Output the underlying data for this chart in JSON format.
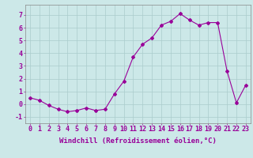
{
  "x": [
    0,
    1,
    2,
    3,
    4,
    5,
    6,
    7,
    8,
    9,
    10,
    11,
    12,
    13,
    14,
    15,
    16,
    17,
    18,
    19,
    20,
    21,
    22,
    23
  ],
  "y": [
    0.5,
    0.3,
    -0.1,
    -0.4,
    -0.6,
    -0.5,
    -0.3,
    -0.5,
    -0.4,
    0.8,
    1.8,
    3.7,
    4.7,
    5.2,
    6.2,
    6.5,
    7.1,
    6.6,
    6.2,
    6.4,
    6.4,
    2.6,
    0.1,
    1.5
  ],
  "line_color": "#990099",
  "marker": "D",
  "marker_size": 2,
  "bg_color": "#cce8e8",
  "grid_color": "#aacccc",
  "xlabel": "Windchill (Refroidissement éolien,°C)",
  "xlabel_fontsize": 6.5,
  "tick_fontsize": 6,
  "ylim": [
    -1.5,
    7.8
  ],
  "xlim": [
    -0.5,
    23.5
  ],
  "yticks": [
    -1,
    0,
    1,
    2,
    3,
    4,
    5,
    6,
    7
  ],
  "xticks": [
    0,
    1,
    2,
    3,
    4,
    5,
    6,
    7,
    8,
    9,
    10,
    11,
    12,
    13,
    14,
    15,
    16,
    17,
    18,
    19,
    20,
    21,
    22,
    23
  ]
}
